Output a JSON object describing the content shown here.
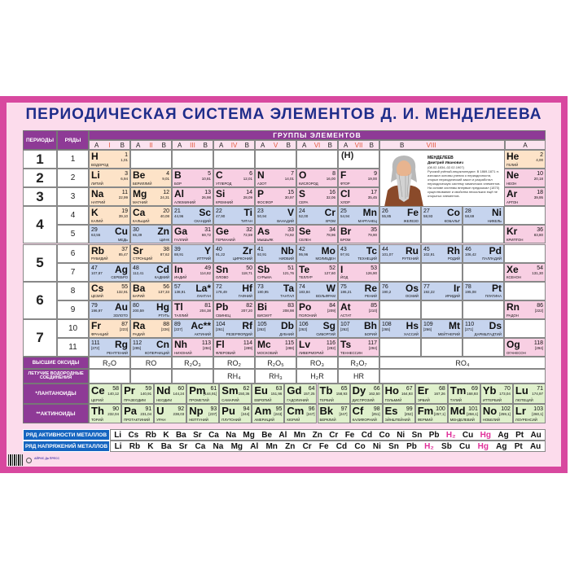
{
  "title": "ПЕРИОДИЧЕСКАЯ СИСТЕМА ЭЛЕМЕНТОВ Д. И. МЕНДЕЛЕЕВА",
  "headers": {
    "periods": "ПЕРИОДЫ",
    "rows": "РЯДЫ",
    "groups": "ГРУППЫ ЭЛЕМЕНТОВ"
  },
  "subheaders": [
    {
      "a": "A",
      "n": "I",
      "b": "B"
    },
    {
      "a": "A",
      "n": "II",
      "b": "B"
    },
    {
      "a": "A",
      "n": "III",
      "b": "B"
    },
    {
      "a": "A",
      "n": "IV",
      "b": "B"
    },
    {
      "a": "A",
      "n": "V",
      "b": "B"
    },
    {
      "a": "A",
      "n": "VI",
      "b": "B"
    },
    {
      "a": "A",
      "n": "VII",
      "b": "B"
    }
  ],
  "viii": {
    "b": "B",
    "n": "VIII"
  },
  "noble_a": "A",
  "periods": [
    {
      "label": "1",
      "from": 1,
      "to": 1
    },
    {
      "label": "2",
      "from": 2,
      "to": 2
    },
    {
      "label": "3",
      "from": 3,
      "to": 3
    },
    {
      "label": "4",
      "from": 4,
      "to": 5
    },
    {
      "label": "5",
      "from": 6,
      "to": 7
    },
    {
      "label": "6",
      "from": 8,
      "to": 9
    },
    {
      "label": "7",
      "from": 10,
      "to": 11
    }
  ],
  "row_labels": [
    "1",
    "2",
    "3",
    "4",
    "5",
    "6",
    "7",
    "8",
    "9",
    "10",
    "11"
  ],
  "h_paren": "(H)",
  "mendeleev": {
    "name": "МЕНДЕЛЕЕВ",
    "given": "Дмитрий Иванович",
    "dates": "(08.02.1834–02.02.1907)",
    "bio": "Русский учёный-энциклопедист. В 1869-1871 гг. изложил основы учения о периодичности, открыл периодический закон и разработал периодическую систему химических элементов. На основе системы впервые предсказал (1870) существование и свойства нескольких ещё не открытых элементов."
  },
  "elements": [
    {
      "s": "H",
      "n": "1",
      "m": "1,01",
      "name": "ВОДОРОД",
      "row": 1,
      "col": 0,
      "t": "s"
    },
    {
      "s": "He",
      "n": "2",
      "m": "4,00",
      "name": "ГЕЛИЙ",
      "row": 1,
      "col": 10,
      "t": "s"
    },
    {
      "s": "Li",
      "n": "3",
      "m": "6,94",
      "name": "ЛИТИЙ",
      "row": 2,
      "col": 0,
      "t": "s"
    },
    {
      "s": "Be",
      "n": "4",
      "m": "9,01",
      "name": "БЕРИЛЛИЙ",
      "row": 2,
      "col": 1,
      "t": "s"
    },
    {
      "s": "B",
      "n": "5",
      "m": "10,81",
      "name": "БОР",
      "row": 2,
      "col": 2,
      "t": "p"
    },
    {
      "s": "C",
      "n": "6",
      "m": "12,01",
      "name": "УГЛЕРОД",
      "row": 2,
      "col": 3,
      "t": "p"
    },
    {
      "s": "N",
      "n": "7",
      "m": "14,01",
      "name": "АЗОТ",
      "row": 2,
      "col": 4,
      "t": "p"
    },
    {
      "s": "O",
      "n": "8",
      "m": "16,00",
      "name": "КИСЛОРОД",
      "row": 2,
      "col": 5,
      "t": "p"
    },
    {
      "s": "F",
      "n": "9",
      "m": "19,00",
      "name": "ФТОР",
      "row": 2,
      "col": 6,
      "t": "p"
    },
    {
      "s": "Ne",
      "n": "10",
      "m": "20,18",
      "name": "НЕОН",
      "row": 2,
      "col": 10,
      "t": "p"
    },
    {
      "s": "Na",
      "n": "11",
      "m": "22,99",
      "name": "НАТРИЙ",
      "row": 3,
      "col": 0,
      "t": "s"
    },
    {
      "s": "Mg",
      "n": "12",
      "m": "24,31",
      "name": "МАГНИЙ",
      "row": 3,
      "col": 1,
      "t": "s"
    },
    {
      "s": "Al",
      "n": "13",
      "m": "26,98",
      "name": "АЛЮМИНИЙ",
      "row": 3,
      "col": 2,
      "t": "p"
    },
    {
      "s": "Si",
      "n": "14",
      "m": "28,09",
      "name": "КРЕМНИЙ",
      "row": 3,
      "col": 3,
      "t": "p"
    },
    {
      "s": "P",
      "n": "15",
      "m": "30,97",
      "name": "ФОСФОР",
      "row": 3,
      "col": 4,
      "t": "p"
    },
    {
      "s": "S",
      "n": "16",
      "m": "32,06",
      "name": "СЕРА",
      "row": 3,
      "col": 5,
      "t": "p"
    },
    {
      "s": "Cl",
      "n": "17",
      "m": "35,45",
      "name": "ХЛОР",
      "row": 3,
      "col": 6,
      "t": "p"
    },
    {
      "s": "Ar",
      "n": "18",
      "m": "39,95",
      "name": "АРГОН",
      "row": 3,
      "col": 10,
      "t": "p"
    },
    {
      "s": "K",
      "n": "19",
      "m": "39,10",
      "name": "КАЛИЙ",
      "row": 4,
      "col": 0,
      "t": "s"
    },
    {
      "s": "Ca",
      "n": "20",
      "m": "40,08",
      "name": "КАЛЬЦИЙ",
      "row": 4,
      "col": 1,
      "t": "s"
    },
    {
      "s": "Sc",
      "n": "21",
      "m": "44,96",
      "name": "СКАНДИЙ",
      "row": 4,
      "col": 2,
      "t": "d"
    },
    {
      "s": "Ti",
      "n": "22",
      "m": "47,90",
      "name": "ТИТАН",
      "row": 4,
      "col": 3,
      "t": "d"
    },
    {
      "s": "V",
      "n": "23",
      "m": "50,94",
      "name": "ВАНАДИЙ",
      "row": 4,
      "col": 4,
      "t": "d"
    },
    {
      "s": "Cr",
      "n": "24",
      "m": "52,00",
      "name": "ХРОМ",
      "row": 4,
      "col": 5,
      "t": "d"
    },
    {
      "s": "Mn",
      "n": "25",
      "m": "54,94",
      "name": "МАРГАНЕЦ",
      "row": 4,
      "col": 6,
      "t": "d"
    },
    {
      "s": "Fe",
      "n": "26",
      "m": "55,85",
      "name": "ЖЕЛЕЗО",
      "row": 4,
      "col": 7,
      "t": "d"
    },
    {
      "s": "Co",
      "n": "27",
      "m": "58,93",
      "name": "КОБАЛЬТ",
      "row": 4,
      "col": 8,
      "t": "d"
    },
    {
      "s": "Ni",
      "n": "28",
      "m": "58,69",
      "name": "НИКЕЛЬ",
      "row": 4,
      "col": 9,
      "t": "d"
    },
    {
      "s": "Cu",
      "n": "29",
      "m": "63,55",
      "name": "МЕДЬ",
      "row": 5,
      "col": 0,
      "t": "d"
    },
    {
      "s": "Zn",
      "n": "30",
      "m": "65,39",
      "name": "ЦИНК",
      "row": 5,
      "col": 1,
      "t": "d"
    },
    {
      "s": "Ga",
      "n": "31",
      "m": "69,72",
      "name": "ГАЛЛИЙ",
      "row": 5,
      "col": 2,
      "t": "p"
    },
    {
      "s": "Ge",
      "n": "32",
      "m": "72,59",
      "name": "ГЕРМАНИЙ",
      "row": 5,
      "col": 3,
      "t": "p"
    },
    {
      "s": "As",
      "n": "33",
      "m": "74,92",
      "name": "МЫШЬЯК",
      "row": 5,
      "col": 4,
      "t": "p"
    },
    {
      "s": "Se",
      "n": "34",
      "m": "78,96",
      "name": "СЕЛЕН",
      "row": 5,
      "col": 5,
      "t": "p"
    },
    {
      "s": "Br",
      "n": "35",
      "m": "79,90",
      "name": "БРОМ",
      "row": 5,
      "col": 6,
      "t": "p"
    },
    {
      "s": "Kr",
      "n": "36",
      "m": "83,80",
      "name": "КРИПТОН",
      "row": 5,
      "col": 10,
      "t": "p"
    },
    {
      "s": "Rb",
      "n": "37",
      "m": "85,47",
      "name": "РУБИДИЙ",
      "row": 6,
      "col": 0,
      "t": "s"
    },
    {
      "s": "Sr",
      "n": "38",
      "m": "87,62",
      "name": "СТРОНЦИЙ",
      "row": 6,
      "col": 1,
      "t": "s"
    },
    {
      "s": "Y",
      "n": "39",
      "m": "88,91",
      "name": "ИТТРИЙ",
      "row": 6,
      "col": 2,
      "t": "d"
    },
    {
      "s": "Zr",
      "n": "40",
      "m": "91,22",
      "name": "ЦИРКОНИЙ",
      "row": 6,
      "col": 3,
      "t": "d"
    },
    {
      "s": "Nb",
      "n": "41",
      "m": "92,91",
      "name": "НИОБИЙ",
      "row": 6,
      "col": 4,
      "t": "d"
    },
    {
      "s": "Mo",
      "n": "42",
      "m": "95,96",
      "name": "МОЛИБДЕН",
      "row": 6,
      "col": 5,
      "t": "d"
    },
    {
      "s": "Tc",
      "n": "43",
      "m": "97,91",
      "name": "ТЕХНЕЦИЙ",
      "row": 6,
      "col": 6,
      "t": "d"
    },
    {
      "s": "Ru",
      "n": "44",
      "m": "101,07",
      "name": "РУТЕНИЙ",
      "row": 6,
      "col": 7,
      "t": "d"
    },
    {
      "s": "Rh",
      "n": "45",
      "m": "102,91",
      "name": "РОДИЙ",
      "row": 6,
      "col": 8,
      "t": "d"
    },
    {
      "s": "Pd",
      "n": "46",
      "m": "106,42",
      "name": "ПАЛЛАДИЙ",
      "row": 6,
      "col": 9,
      "t": "d"
    },
    {
      "s": "Ag",
      "n": "47",
      "m": "107,87",
      "name": "СЕРЕБРО",
      "row": 7,
      "col": 0,
      "t": "d"
    },
    {
      "s": "Cd",
      "n": "48",
      "m": "112,41",
      "name": "КАДМИЙ",
      "row": 7,
      "col": 1,
      "t": "d"
    },
    {
      "s": "In",
      "n": "49",
      "m": "114,82",
      "name": "ИНДИЙ",
      "row": 7,
      "col": 2,
      "t": "p"
    },
    {
      "s": "Sn",
      "n": "50",
      "m": "118,71",
      "name": "ОЛОВО",
      "row": 7,
      "col": 3,
      "t": "p"
    },
    {
      "s": "Sb",
      "n": "51",
      "m": "121,76",
      "name": "СУРЬМА",
      "row": 7,
      "col": 4,
      "t": "p"
    },
    {
      "s": "Te",
      "n": "52",
      "m": "127,60",
      "name": "ТЕЛЛУР",
      "row": 7,
      "col": 5,
      "t": "p"
    },
    {
      "s": "I",
      "n": "53",
      "m": "126,90",
      "name": "ЙОД",
      "row": 7,
      "col": 6,
      "t": "p"
    },
    {
      "s": "Xe",
      "n": "54",
      "m": "131,30",
      "name": "КСЕНОН",
      "row": 7,
      "col": 10,
      "t": "p"
    },
    {
      "s": "Cs",
      "n": "55",
      "m": "132,91",
      "name": "ЦЕЗИЙ",
      "row": 8,
      "col": 0,
      "t": "s"
    },
    {
      "s": "Ba",
      "n": "56",
      "m": "137,33",
      "name": "БАРИЙ",
      "row": 8,
      "col": 1,
      "t": "s"
    },
    {
      "s": "La*",
      "n": "57",
      "m": "138,91",
      "name": "ЛАНТАН",
      "row": 8,
      "col": 2,
      "t": "d"
    },
    {
      "s": "Hf",
      "n": "72",
      "m": "178,49",
      "name": "ГАФНИЙ",
      "row": 8,
      "col": 3,
      "t": "d"
    },
    {
      "s": "Ta",
      "n": "73",
      "m": "180,95",
      "name": "ТАНТАЛ",
      "row": 8,
      "col": 4,
      "t": "d"
    },
    {
      "s": "W",
      "n": "74",
      "m": "183,84",
      "name": "ВОЛЬФРАМ",
      "row": 8,
      "col": 5,
      "t": "d"
    },
    {
      "s": "Re",
      "n": "75",
      "m": "186,21",
      "name": "РЕНИЙ",
      "row": 8,
      "col": 6,
      "t": "d"
    },
    {
      "s": "Os",
      "n": "76",
      "m": "190,2",
      "name": "ОСМИЙ",
      "row": 8,
      "col": 7,
      "t": "d"
    },
    {
      "s": "Ir",
      "n": "77",
      "m": "192,22",
      "name": "ИРИДИЙ",
      "row": 8,
      "col": 8,
      "t": "d"
    },
    {
      "s": "Pt",
      "n": "78",
      "m": "195,08",
      "name": "ПЛАТИНА",
      "row": 8,
      "col": 9,
      "t": "d"
    },
    {
      "s": "Au",
      "n": "79",
      "m": "196,97",
      "name": "ЗОЛОТО",
      "row": 9,
      "col": 0,
      "t": "d"
    },
    {
      "s": "Hg",
      "n": "80",
      "m": "200,59",
      "name": "РТУТЬ",
      "row": 9,
      "col": 1,
      "t": "d"
    },
    {
      "s": "Tl",
      "n": "81",
      "m": "204,38",
      "name": "ТАЛЛИЙ",
      "row": 9,
      "col": 2,
      "t": "p"
    },
    {
      "s": "Pb",
      "n": "82",
      "m": "207,20",
      "name": "СВИНЕЦ",
      "row": 9,
      "col": 3,
      "t": "p"
    },
    {
      "s": "Bi",
      "n": "83",
      "m": "208,98",
      "name": "ВИСМУТ",
      "row": 9,
      "col": 4,
      "t": "p"
    },
    {
      "s": "Po",
      "n": "84",
      "m": "[209]",
      "name": "ПОЛОНИЙ",
      "row": 9,
      "col": 5,
      "t": "p"
    },
    {
      "s": "At",
      "n": "85",
      "m": "[210]",
      "name": "АСТАТ",
      "row": 9,
      "col": 6,
      "t": "p"
    },
    {
      "s": "Rn",
      "n": "86",
      "m": "[222]",
      "name": "РАДОН",
      "row": 9,
      "col": 10,
      "t": "p"
    },
    {
      "s": "Fr",
      "n": "87",
      "m": "[223]",
      "name": "ФРАНЦИЙ",
      "row": 10,
      "col": 0,
      "t": "s"
    },
    {
      "s": "Ra",
      "n": "88",
      "m": "[226]",
      "name": "РАДИЙ",
      "row": 10,
      "col": 1,
      "t": "s"
    },
    {
      "s": "Ac**",
      "n": "89",
      "m": "[227]",
      "name": "АКТИНИЙ",
      "row": 10,
      "col": 2,
      "t": "d"
    },
    {
      "s": "Rf",
      "n": "104",
      "m": "[261]",
      "name": "РЕЗЕРФОРДИЙ",
      "row": 10,
      "col": 3,
      "t": "d"
    },
    {
      "s": "Db",
      "n": "105",
      "m": "[262]",
      "name": "ДУБНИЙ",
      "row": 10,
      "col": 4,
      "t": "d"
    },
    {
      "s": "Sg",
      "n": "106",
      "m": "[263]",
      "name": "СИБОРГИЙ",
      "row": 10,
      "col": 5,
      "t": "d"
    },
    {
      "s": "Bh",
      "n": "107",
      "m": "[262]",
      "name": "БОРИЙ",
      "row": 10,
      "col": 6,
      "t": "d"
    },
    {
      "s": "Hs",
      "n": "108",
      "m": "[265]",
      "name": "ХАССИЙ",
      "row": 10,
      "col": 7,
      "t": "d"
    },
    {
      "s": "Mt",
      "n": "109",
      "m": "[266]",
      "name": "МЕЙТНЕРИЙ",
      "row": 10,
      "col": 8,
      "t": "d"
    },
    {
      "s": "Ds",
      "n": "110",
      "m": "[271]",
      "name": "ДАРМШТАДТИЙ",
      "row": 10,
      "col": 9,
      "t": "d"
    },
    {
      "s": "Rg",
      "n": "111",
      "m": "[272]",
      "name": "РЕНТГЕНИЙ",
      "row": 11,
      "col": 0,
      "t": "d"
    },
    {
      "s": "Cn",
      "n": "112",
      "m": "[285]",
      "name": "КОПЕРНИЦИЙ",
      "row": 11,
      "col": 1,
      "t": "d"
    },
    {
      "s": "Nh",
      "n": "113",
      "m": "[284]",
      "name": "НИХОНИЙ",
      "row": 11,
      "col": 2,
      "t": "p"
    },
    {
      "s": "Fl",
      "n": "114",
      "m": "[289]",
      "name": "ФЛЕРОВИЙ",
      "row": 11,
      "col": 3,
      "t": "p"
    },
    {
      "s": "Mc",
      "n": "115",
      "m": "[288]",
      "name": "МОСКОВИЙ",
      "row": 11,
      "col": 4,
      "t": "p"
    },
    {
      "s": "Lv",
      "n": "116",
      "m": "[292]",
      "name": "ЛИВЕРМОРИЙ",
      "row": 11,
      "col": 5,
      "t": "p"
    },
    {
      "s": "Ts",
      "n": "117",
      "m": "[294]",
      "name": "ТЕННЕССИН",
      "row": 11,
      "col": 6,
      "t": "p"
    },
    {
      "s": "Og",
      "n": "118",
      "m": "[294]",
      "name": "ОГАНЕСОН",
      "row": 11,
      "col": 10,
      "t": "p"
    }
  ],
  "oxides": {
    "label": "ВЫСШИЕ ОКСИДЫ",
    "values": [
      "R₂O",
      "RO",
      "R₂O₃",
      "RO₂",
      "R₂O₅",
      "RO₃",
      "R₂O₇",
      "RO₄"
    ]
  },
  "hydrides": {
    "label": "ЛЕТУЧИЕ ВОДОРОДНЫЕ СОЕДИНЕНИЯ",
    "values": [
      "",
      "",
      "",
      "RH₄",
      "RH₃",
      "H₂R",
      "HR",
      ""
    ]
  },
  "lanthanides": {
    "label": "*ЛАНТАНОИДЫ",
    "items": [
      {
        "s": "Ce",
        "n": "58",
        "m": "140,12",
        "name": "ЦЕРИЙ"
      },
      {
        "s": "Pr",
        "n": "59",
        "m": "140,91",
        "name": "ПРАЗЕОДИМ"
      },
      {
        "s": "Nd",
        "n": "60",
        "m": "144,24",
        "name": "НЕОДИМ"
      },
      {
        "s": "Pm",
        "n": "61",
        "m": "[144,91]",
        "name": "ПРОМЕТИЙ"
      },
      {
        "s": "Sm",
        "n": "62",
        "m": "150,36",
        "name": "САМАРИЙ"
      },
      {
        "s": "Eu",
        "n": "63",
        "m": "151,96",
        "name": "ЕВРОПИЙ"
      },
      {
        "s": "Gd",
        "n": "64",
        "m": "157,25",
        "name": "ГАДОЛИНИЙ"
      },
      {
        "s": "Tb",
        "n": "65",
        "m": "158,93",
        "name": "ТЕРБИЙ"
      },
      {
        "s": "Dy",
        "n": "66",
        "m": "162,50",
        "name": "ДИСПРОЗИЙ"
      },
      {
        "s": "Ho",
        "n": "67",
        "m": "164,93",
        "name": "ГОЛЬМИЙ"
      },
      {
        "s": "Er",
        "n": "68",
        "m": "167,26",
        "name": "ЭРБИЙ"
      },
      {
        "s": "Tm",
        "n": "69",
        "m": "168,93",
        "name": "ТУЛИЙ"
      },
      {
        "s": "Yb",
        "n": "70",
        "m": "173,04",
        "name": "ИТТЕРБИЙ"
      },
      {
        "s": "Lu",
        "n": "71",
        "m": "174,97",
        "name": "ЛЮТЕЦИЙ"
      }
    ]
  },
  "actinides": {
    "label": "**АКТИНОИДЫ",
    "items": [
      {
        "s": "Th",
        "n": "90",
        "m": "232,04",
        "name": "ТОРИЙ"
      },
      {
        "s": "Pa",
        "n": "91",
        "m": "231,04",
        "name": "ПРОТАКТИНИЙ"
      },
      {
        "s": "U",
        "n": "92",
        "m": "238,03",
        "name": "УРАН"
      },
      {
        "s": "Np",
        "n": "93",
        "m": "[237]",
        "name": "НЕПТУНИЙ"
      },
      {
        "s": "Pu",
        "n": "94",
        "m": "[244]",
        "name": "ПЛУТОНИЙ"
      },
      {
        "s": "Am",
        "n": "95",
        "m": "[243]",
        "name": "АМЕРИЦИЙ"
      },
      {
        "s": "Cm",
        "n": "96",
        "m": "[247]",
        "name": "КЮРИЙ"
      },
      {
        "s": "Bk",
        "n": "97",
        "m": "[247]",
        "name": "БЕРКЛИЙ"
      },
      {
        "s": "Cf",
        "n": "98",
        "m": "[251]",
        "name": "КАЛИФОРНИЙ"
      },
      {
        "s": "Es",
        "n": "99",
        "m": "[252]",
        "name": "ЭЙНШТЕЙНИЙ"
      },
      {
        "s": "Fm",
        "n": "100",
        "m": "[257,1]",
        "name": "ФЕРМИЙ"
      },
      {
        "s": "Md",
        "n": "101",
        "m": "[258,1]",
        "name": "МЕНДЕЛЕВИЙ"
      },
      {
        "s": "No",
        "n": "102",
        "m": "[259,1]",
        "name": "НОБЕЛИЙ"
      },
      {
        "s": "Lr",
        "n": "103",
        "m": "[260,1]",
        "name": "ЛОУРЕНСИЙ"
      }
    ]
  },
  "activity": {
    "label": "РЯД АКТИВНОСТИ МЕТАЛЛОВ",
    "metals": [
      "Li",
      "Cs",
      "Rb",
      "K",
      "Ba",
      "Sr",
      "Ca",
      "Na",
      "Mg",
      "Be",
      "Al",
      "Mn",
      "Zn",
      "Cr",
      "Fe",
      "Cd",
      "Co",
      "Ni",
      "Sn",
      "Pb",
      "H₂",
      "Cu",
      "Hg",
      "Ag",
      "Pt",
      "Au"
    ]
  },
  "voltage": {
    "label": "РЯД НАПРЯЖЕНИЙ МЕТАЛЛОВ",
    "metals": [
      "Li",
      "Rb",
      "K",
      "Ba",
      "Sr",
      "Ca",
      "Na",
      "Mg",
      "Al",
      "Mn",
      "Zn",
      "Cr",
      "Fe",
      "Cd",
      "Co",
      "Ni",
      "Sn",
      "Pb",
      "H₂",
      "Sb",
      "Cu",
      "Hg",
      "Ag",
      "Pt",
      "Au"
    ]
  },
  "footer": {
    "publisher": "АЙРИС Да ПРЕСС"
  },
  "colors": {
    "border": "#d8489f",
    "background": "#fcdcec",
    "title": "#1f2d8a",
    "header": "#8e3a96",
    "s_block": "#fde3c8",
    "p_block": "#f8cfe3",
    "d_block": "#c6d4ee",
    "f_block": "#dff0cc",
    "activity_label": "#1565c0",
    "hydrogen": "#e0309a",
    "roman": "#e2553b"
  }
}
